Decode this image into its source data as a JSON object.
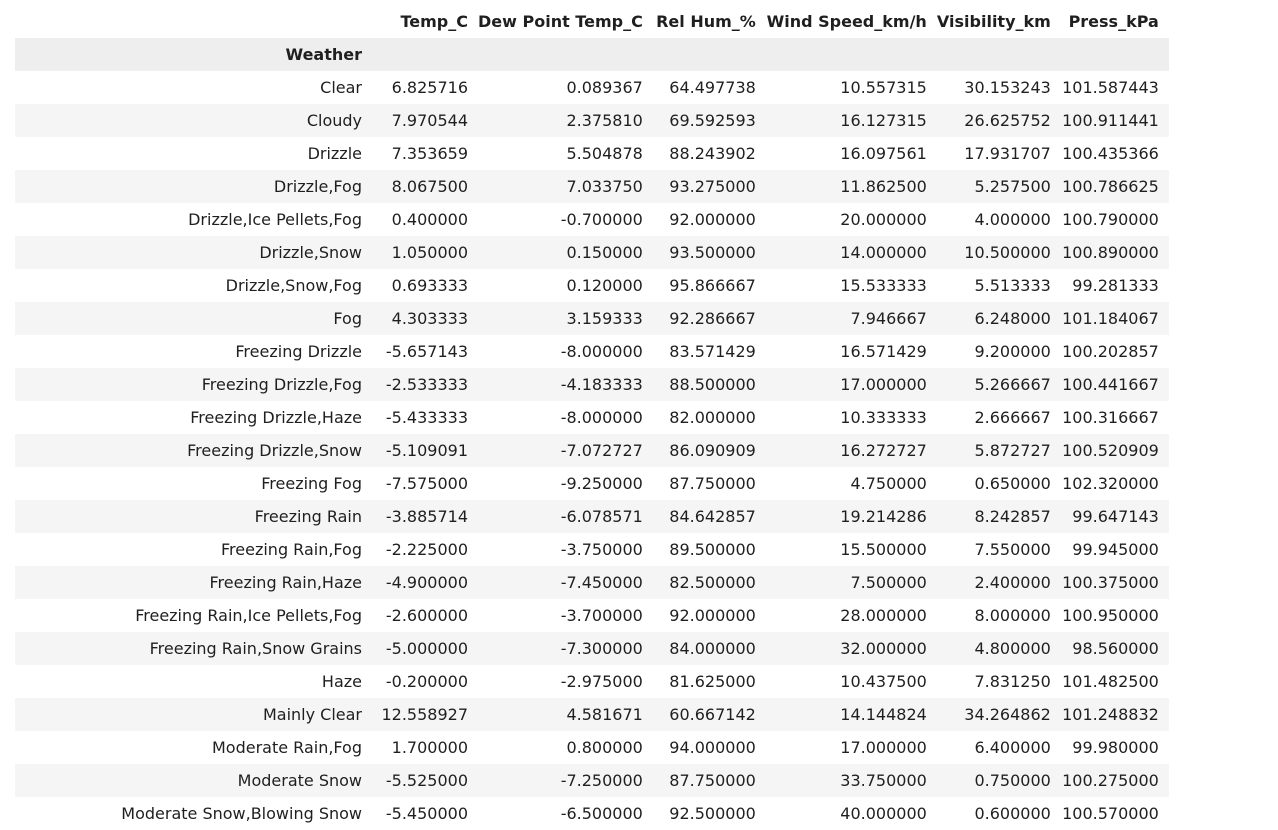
{
  "table": {
    "columns": [
      "Temp_C",
      "Dew Point Temp_C",
      "Rel Hum_%",
      "Wind Speed_km/h",
      "Visibility_km",
      "Press_kPa"
    ],
    "index_name": "Weather",
    "rows": [
      {
        "label": "Clear",
        "values": [
          "6.825716",
          "0.089367",
          "64.497738",
          "10.557315",
          "30.153243",
          "101.587443"
        ]
      },
      {
        "label": "Cloudy",
        "values": [
          "7.970544",
          "2.375810",
          "69.592593",
          "16.127315",
          "26.625752",
          "100.911441"
        ]
      },
      {
        "label": "Drizzle",
        "values": [
          "7.353659",
          "5.504878",
          "88.243902",
          "16.097561",
          "17.931707",
          "100.435366"
        ]
      },
      {
        "label": "Drizzle,Fog",
        "values": [
          "8.067500",
          "7.033750",
          "93.275000",
          "11.862500",
          "5.257500",
          "100.786625"
        ]
      },
      {
        "label": "Drizzle,Ice Pellets,Fog",
        "values": [
          "0.400000",
          "-0.700000",
          "92.000000",
          "20.000000",
          "4.000000",
          "100.790000"
        ]
      },
      {
        "label": "Drizzle,Snow",
        "values": [
          "1.050000",
          "0.150000",
          "93.500000",
          "14.000000",
          "10.500000",
          "100.890000"
        ]
      },
      {
        "label": "Drizzle,Snow,Fog",
        "values": [
          "0.693333",
          "0.120000",
          "95.866667",
          "15.533333",
          "5.513333",
          "99.281333"
        ]
      },
      {
        "label": "Fog",
        "values": [
          "4.303333",
          "3.159333",
          "92.286667",
          "7.946667",
          "6.248000",
          "101.184067"
        ]
      },
      {
        "label": "Freezing Drizzle",
        "values": [
          "-5.657143",
          "-8.000000",
          "83.571429",
          "16.571429",
          "9.200000",
          "100.202857"
        ]
      },
      {
        "label": "Freezing Drizzle,Fog",
        "values": [
          "-2.533333",
          "-4.183333",
          "88.500000",
          "17.000000",
          "5.266667",
          "100.441667"
        ]
      },
      {
        "label": "Freezing Drizzle,Haze",
        "values": [
          "-5.433333",
          "-8.000000",
          "82.000000",
          "10.333333",
          "2.666667",
          "100.316667"
        ]
      },
      {
        "label": "Freezing Drizzle,Snow",
        "values": [
          "-5.109091",
          "-7.072727",
          "86.090909",
          "16.272727",
          "5.872727",
          "100.520909"
        ]
      },
      {
        "label": "Freezing Fog",
        "values": [
          "-7.575000",
          "-9.250000",
          "87.750000",
          "4.750000",
          "0.650000",
          "102.320000"
        ]
      },
      {
        "label": "Freezing Rain",
        "values": [
          "-3.885714",
          "-6.078571",
          "84.642857",
          "19.214286",
          "8.242857",
          "99.647143"
        ]
      },
      {
        "label": "Freezing Rain,Fog",
        "values": [
          "-2.225000",
          "-3.750000",
          "89.500000",
          "15.500000",
          "7.550000",
          "99.945000"
        ]
      },
      {
        "label": "Freezing Rain,Haze",
        "values": [
          "-4.900000",
          "-7.450000",
          "82.500000",
          "7.500000",
          "2.400000",
          "100.375000"
        ]
      },
      {
        "label": "Freezing Rain,Ice Pellets,Fog",
        "values": [
          "-2.600000",
          "-3.700000",
          "92.000000",
          "28.000000",
          "8.000000",
          "100.950000"
        ]
      },
      {
        "label": "Freezing Rain,Snow Grains",
        "values": [
          "-5.000000",
          "-7.300000",
          "84.000000",
          "32.000000",
          "4.800000",
          "98.560000"
        ]
      },
      {
        "label": "Haze",
        "values": [
          "-0.200000",
          "-2.975000",
          "81.625000",
          "10.437500",
          "7.831250",
          "101.482500"
        ]
      },
      {
        "label": "Mainly Clear",
        "values": [
          "12.558927",
          "4.581671",
          "60.667142",
          "14.144824",
          "34.264862",
          "101.248832"
        ]
      },
      {
        "label": "Moderate Rain,Fog",
        "values": [
          "1.700000",
          "0.800000",
          "94.000000",
          "17.000000",
          "6.400000",
          "99.980000"
        ]
      },
      {
        "label": "Moderate Snow",
        "values": [
          "-5.525000",
          "-7.250000",
          "87.750000",
          "33.750000",
          "0.750000",
          "100.275000"
        ]
      },
      {
        "label": "Moderate Snow,Blowing Snow",
        "values": [
          "-5.450000",
          "-6.500000",
          "92.500000",
          "40.000000",
          "0.600000",
          "100.570000"
        ]
      }
    ]
  }
}
